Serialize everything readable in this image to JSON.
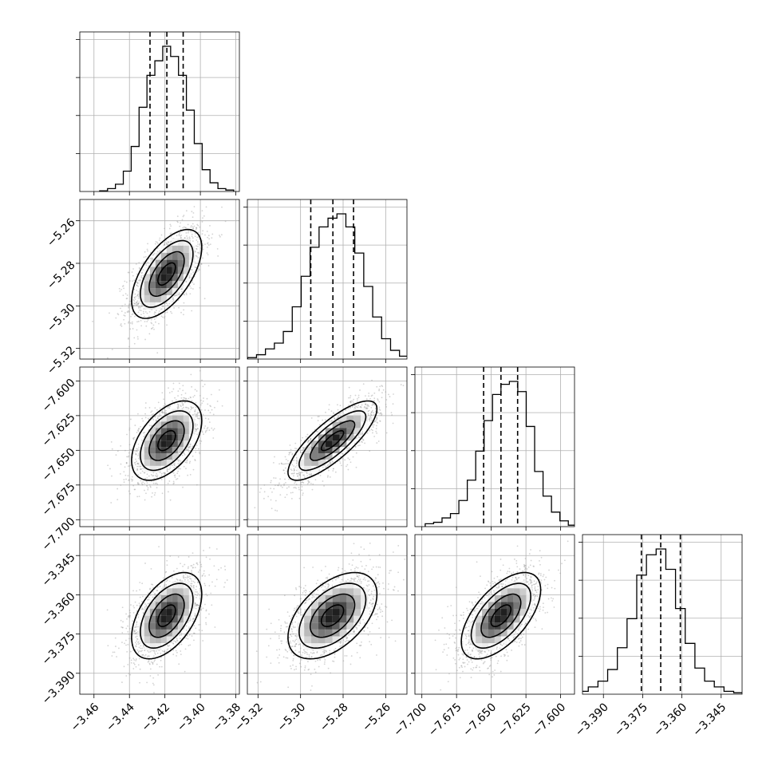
{
  "chart_data": {
    "type": "scatter",
    "subtype": "corner-plot",
    "params": [
      {
        "ticks": [
          -3.46,
          -3.44,
          -3.42,
          -3.4,
          -3.38
        ],
        "tick_labels": [
          "−3.46",
          "−3.44",
          "−3.42",
          "−3.40",
          "−3.38"
        ],
        "range": [
          -3.468,
          -3.378
        ],
        "mean": -3.419,
        "sigma": 0.009,
        "quantiles": [
          -3.4284,
          -3.4189,
          -3.4097
        ],
        "hist": [
          0.005,
          0.02,
          0.05,
          0.14,
          0.31,
          0.58,
          0.8,
          0.9,
          1.0,
          0.93,
          0.8,
          0.56,
          0.33,
          0.15,
          0.06,
          0.02,
          0.01
        ]
      },
      {
        "ticks": [
          -5.32,
          -5.3,
          -5.28,
          -5.26
        ],
        "tick_labels": [
          "−5.32",
          "−5.30",
          "−5.28",
          "−5.26"
        ],
        "range": [
          -5.325,
          -5.25
        ],
        "mean": -5.285,
        "sigma": 0.0095,
        "quantiles": [
          -5.2952,
          -5.2848,
          -5.2751
        ],
        "hist": [
          0.01,
          0.03,
          0.07,
          0.11,
          0.19,
          0.36,
          0.57,
          0.77,
          0.91,
          0.97,
          1.0,
          0.91,
          0.73,
          0.5,
          0.29,
          0.14,
          0.06,
          0.02,
          0.01
        ]
      },
      {
        "ticks": [
          -7.7,
          -7.675,
          -7.65,
          -7.625,
          -7.6
        ],
        "tick_labels": [
          "−7.700",
          "−7.675",
          "−7.650",
          "−7.625",
          "−7.600"
        ],
        "range": [
          -7.705,
          -7.59
        ],
        "mean": -7.643,
        "sigma": 0.013,
        "quantiles": [
          -7.6555,
          -7.643,
          -7.631
        ],
        "hist": [
          0.02,
          0.03,
          0.06,
          0.09,
          0.18,
          0.32,
          0.52,
          0.73,
          0.91,
          0.98,
          1.0,
          0.93,
          0.69,
          0.38,
          0.21,
          0.1,
          0.04,
          0.01
        ]
      },
      {
        "ticks": [
          -3.39,
          -3.375,
          -3.36,
          -3.345
        ],
        "tick_labels": [
          "−3.390",
          "−3.375",
          "−3.360",
          "−3.345"
        ],
        "range": [
          -3.398,
          -3.337
        ],
        "mean": -3.368,
        "sigma": 0.0075,
        "quantiles": [
          -3.3755,
          -3.3681,
          -3.3606
        ],
        "hist": [
          0.02,
          0.05,
          0.09,
          0.17,
          0.32,
          0.52,
          0.82,
          0.96,
          1.0,
          0.86,
          0.59,
          0.35,
          0.18,
          0.09,
          0.05,
          0.02,
          0.01
        ]
      }
    ],
    "correlations": [
      [
        1,
        0.6,
        0.5,
        0.5
      ],
      [
        0.6,
        1,
        0.8,
        0.5
      ],
      [
        0.5,
        0.8,
        1,
        0.6
      ],
      [
        0.5,
        0.5,
        0.6,
        1
      ]
    ],
    "contour_levels_sigma": [
      0.5,
      1.0,
      1.5,
      2.0
    ],
    "colors": {
      "ink": "#000000",
      "grid": "#b0b0b0",
      "scatter": "#9e9e9e"
    }
  }
}
